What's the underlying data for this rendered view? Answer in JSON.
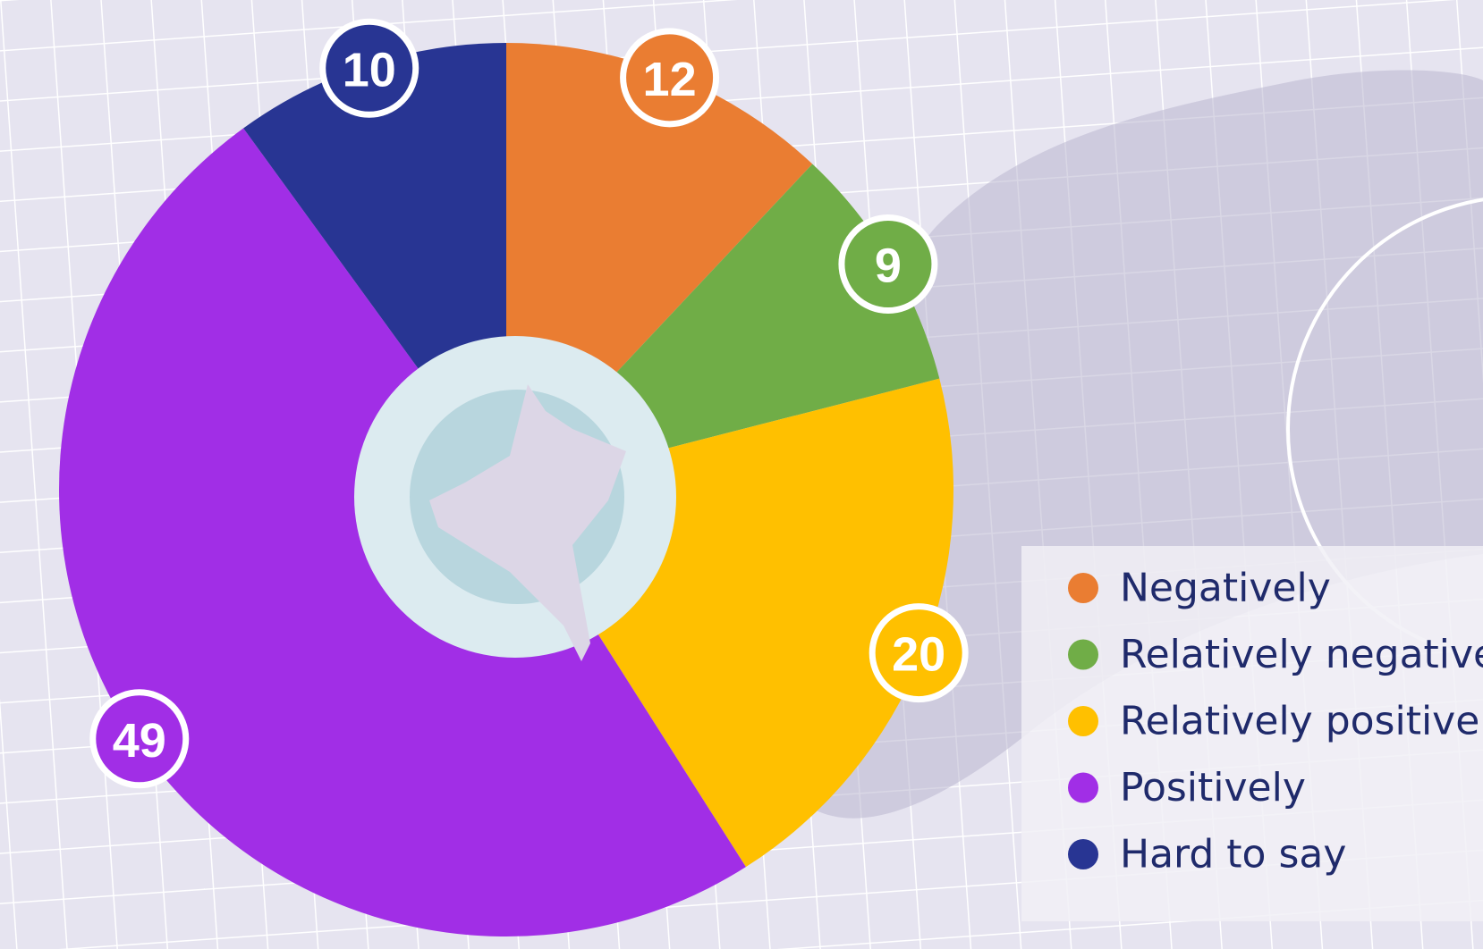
{
  "chart_data": {
    "type": "pie",
    "categories": [
      "Negatively",
      "Relatively negative",
      "Relatively positive",
      "Positively",
      "Hard to say"
    ],
    "values": [
      12,
      9,
      20,
      49,
      10
    ],
    "colors": [
      "#ea7d32",
      "#70ad47",
      "#ffc000",
      "#a12ee6",
      "#283593"
    ],
    "legend": "right"
  }
}
